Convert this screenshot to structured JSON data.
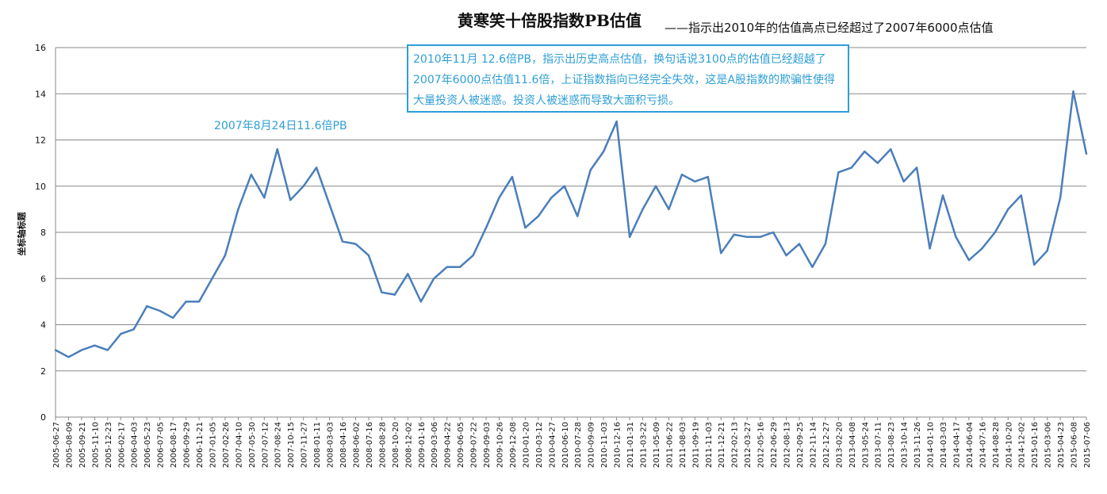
{
  "chart_data": {
    "type": "line",
    "title": "黄寒笑十倍股指数PB估值",
    "subtitle": "——指示出2010年的估值高点已经超过了2007年6000点估值",
    "ylabel": "坐标轴标题",
    "xlabel": "",
    "ylim": [
      0,
      16
    ],
    "yticks": [
      0,
      2,
      4,
      6,
      8,
      10,
      12,
      14,
      16
    ],
    "grid": true,
    "legend": "none",
    "series": [
      {
        "name": "PB",
        "color": "#4a7ebb",
        "x": [
          "2005-06-27",
          "2005-08-09",
          "2005-09-21",
          "2005-11-10",
          "2005-12-23",
          "2006-02-17",
          "2006-04-03",
          "2006-05-23",
          "2006-07-05",
          "2006-08-17",
          "2006-09-29",
          "2006-11-21",
          "2007-01-05",
          "2007-02-26",
          "2007-04-10",
          "2007-05-30",
          "2007-07-12",
          "2007-08-24",
          "2007-10-15",
          "2007-11-27",
          "2008-01-11",
          "2008-03-03",
          "2008-04-16",
          "2008-06-02",
          "2008-07-16",
          "2008-08-28",
          "2008-10-20",
          "2008-12-02",
          "2009-01-16",
          "2009-03-06",
          "2009-04-22",
          "2009-06-05",
          "2009-07-22",
          "2009-09-03",
          "2009-10-26",
          "2009-12-08",
          "2010-01-20",
          "2010-03-12",
          "2010-04-27",
          "2010-06-10",
          "2010-07-28",
          "2010-09-09",
          "2010-11-03",
          "2010-12-16",
          "2011-01-31",
          "2011-03-22",
          "2011-05-09",
          "2011-06-22",
          "2011-08-03",
          "2011-09-19",
          "2011-11-03",
          "2011-12-21",
          "2012-02-13",
          "2012-03-27",
          "2012-05-16",
          "2012-06-29",
          "2012-08-13",
          "2012-09-25",
          "2012-11-14",
          "2012-12-27",
          "2013-02-20",
          "2013-04-08",
          "2013-05-24",
          "2013-07-11",
          "2013-08-23",
          "2013-10-14",
          "2013-11-26",
          "2014-01-10",
          "2014-03-03",
          "2014-04-17",
          "2014-06-04",
          "2014-07-16",
          "2014-08-28",
          "2014-10-20",
          "2014-12-02",
          "2015-01-16",
          "2015-03-06",
          "2015-04-23",
          "2015-06-08",
          "2015-07-06"
        ],
        "values": [
          2.9,
          2.6,
          2.9,
          3.1,
          2.9,
          3.6,
          3.8,
          4.8,
          4.6,
          4.3,
          5.0,
          5.0,
          6.0,
          7.0,
          9.0,
          10.5,
          9.5,
          11.6,
          9.4,
          10.0,
          10.8,
          9.2,
          7.6,
          7.5,
          7.0,
          5.4,
          5.3,
          6.2,
          5.0,
          6.0,
          6.5,
          6.5,
          7.0,
          8.2,
          9.5,
          10.4,
          8.2,
          8.7,
          9.5,
          10.0,
          8.7,
          10.7,
          11.5,
          12.8,
          7.8,
          9.0,
          10.0,
          9.0,
          10.5,
          10.2,
          10.4,
          7.1,
          7.9,
          7.8,
          7.8,
          8.0,
          7.0,
          7.5,
          6.5,
          7.5,
          10.6,
          10.8,
          11.5,
          11.0,
          11.6,
          10.2,
          10.8,
          7.3,
          9.6,
          7.8,
          6.8,
          7.3,
          8.0,
          9.0,
          9.6,
          6.6,
          7.2,
          9.5,
          14.1,
          11.4
        ]
      }
    ],
    "annotations": [
      {
        "text": "2007年8月24日11.6倍PB"
      },
      {
        "text": "2010年11月 12.6倍PB，指示出历史高点估值，换句话说3100点的估值已经超越了2007年6000点估值11.6倍，上证指数指向已经完全失效，这是A股指数的欺骗性使得大量投资人被迷惑。投资人被迷惑而导致大面积亏损。"
      }
    ]
  }
}
